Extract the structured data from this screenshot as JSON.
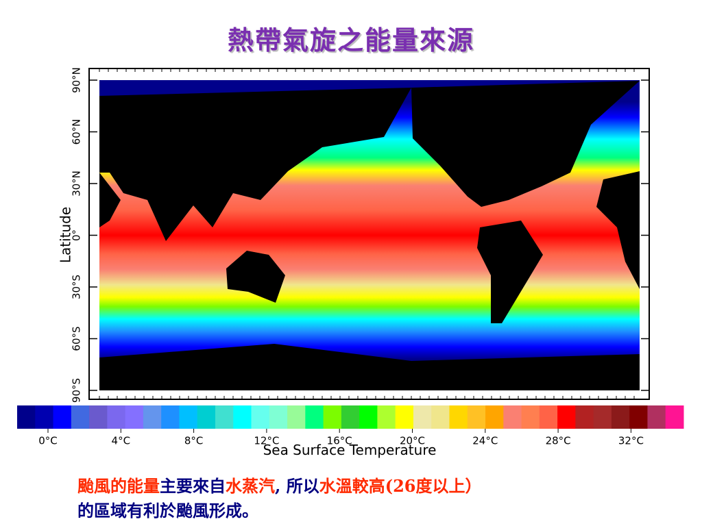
{
  "title": "熱帶氣旋之能量來源",
  "map": {
    "y_axis_label": "Latitude",
    "latitude_labels": [
      "90°N",
      "60°N",
      "30°N",
      "0°",
      "30°S",
      "60°S",
      "90°S"
    ]
  },
  "colorbar": {
    "colors": [
      "#00008b",
      "#0000b0",
      "#0000ff",
      "#4169e1",
      "#6a5acd",
      "#7b68ee",
      "#8470ff",
      "#6495ed",
      "#1e90ff",
      "#00bfff",
      "#00ced1",
      "#40e0d0",
      "#00ffff",
      "#66ffee",
      "#7fffd4",
      "#98fb98",
      "#00ff7f",
      "#7cfc00",
      "#32cd32",
      "#00ff00",
      "#adff2f",
      "#ffff00",
      "#eee8aa",
      "#f0e68c",
      "#ffd700",
      "#ffc125",
      "#ffa500",
      "#fa8072",
      "#ff7f50",
      "#ff6347",
      "#ff0000",
      "#b22222",
      "#a52a2a",
      "#8b1a1a",
      "#800000",
      "#b03060",
      "#ff1493"
    ],
    "labels": [
      "0°C",
      "4°C",
      "8°C",
      "12°C",
      "16°C",
      "20°C",
      "24°C",
      "28°C",
      "32°C"
    ],
    "title": "Sea Surface Temperature"
  },
  "caption": {
    "lines": [
      [
        {
          "text": "颱風的能量",
          "color": "#ff2a00"
        },
        {
          "text": "主要來自",
          "color": "#000080"
        },
        {
          "text": "水蒸汽",
          "color": "#ff2a00"
        },
        {
          "text": ", 所以",
          "color": "#000080"
        },
        {
          "text": "水溫較高(26度以上）",
          "color": "#ff2a00"
        }
      ],
      [
        {
          "text": "的區域有利於颱風形成。",
          "color": "#000080"
        }
      ]
    ]
  }
}
